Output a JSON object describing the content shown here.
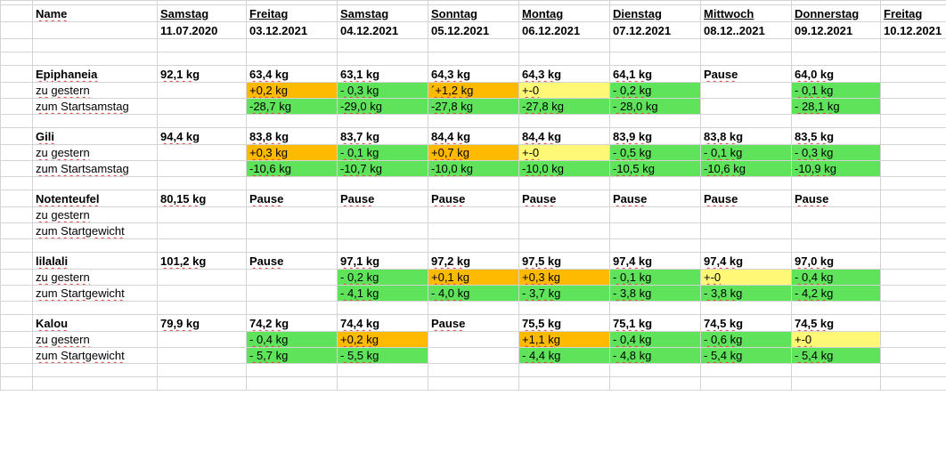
{
  "header": {
    "name_label": "Name",
    "columns": [
      {
        "day": "Samstag",
        "date": "11.07.2020"
      },
      {
        "day": "Freitag",
        "date": "03.12.2021"
      },
      {
        "day": "Samstag",
        "date": "04.12.2021"
      },
      {
        "day": "Sonntag",
        "date": "05.12.2021"
      },
      {
        "day": "Montag",
        "date": "06.12.2021"
      },
      {
        "day": "Dienstag",
        "date": "07.12.2021"
      },
      {
        "day": "Mittwoch",
        "date": "08.12..2021"
      },
      {
        "day": "Donnerstag",
        "date": "09.12.2021"
      },
      {
        "day": "Freitag",
        "date": "10.12.2021"
      }
    ]
  },
  "colors": {
    "green": "#5fe35a",
    "orange": "#fdba00",
    "yellow": "#fff877",
    "grid": "#d4d4d4"
  },
  "persons": [
    {
      "name": "Epiphaneia",
      "weights": [
        "92,1 kg",
        "63,4 kg",
        "63,1 kg",
        "64,3 kg",
        "64,3 kg",
        "64,1 kg",
        "Pause",
        "64,0 kg",
        ""
      ],
      "label1": "zu gestern",
      "row1": [
        "",
        "+0,2 kg",
        "- 0,3 kg",
        "´+1,2 kg",
        "+-0",
        "- 0,2 kg",
        "",
        "- 0,1 kg",
        ""
      ],
      "row1_colors": [
        "",
        "o",
        "g",
        "o",
        "y",
        "g",
        "",
        "g",
        ""
      ],
      "label2": "zum Startsamstag",
      "row2": [
        "",
        "-28,7 kg",
        "-29,0 kg",
        "-27,8 kg",
        "-27,8 kg",
        "- 28,0 kg",
        "",
        "- 28,1 kg",
        ""
      ],
      "row2_colors": [
        "",
        "g",
        "g",
        "g",
        "g",
        "g",
        "",
        "g",
        ""
      ]
    },
    {
      "name": "Gili",
      "weights": [
        "94,4 kg",
        "83,8 kg",
        "83,7 kg",
        "84,4 kg",
        "84,4 kg",
        "83,9 kg",
        "83,8 kg",
        "83,5 kg",
        ""
      ],
      "label1": "zu gestern",
      "row1": [
        "",
        "+0,3 kg",
        "- 0,1 kg",
        "+0,7 kg",
        "+-0",
        "- 0,5 kg",
        "- 0,1 kg",
        "- 0,3 kg",
        ""
      ],
      "row1_colors": [
        "",
        "o",
        "g",
        "o",
        "y",
        "g",
        "g",
        "g",
        ""
      ],
      "label2": "zum Startsamstag",
      "row2": [
        "",
        "-10,6 kg",
        "-10,7 kg",
        "-10,0 kg",
        "-10,0 kg",
        "-10,5 kg",
        "-10,6 kg",
        "-10,9 kg",
        ""
      ],
      "row2_colors": [
        "",
        "g",
        "g",
        "g",
        "g",
        "g",
        "g",
        "g",
        ""
      ]
    },
    {
      "name": "Notenteufel",
      "weights": [
        "80,15 kg",
        "Pause",
        "Pause",
        "Pause",
        "Pause",
        "Pause",
        "Pause",
        "Pause",
        ""
      ],
      "label1": "zu gestern",
      "row1": [
        "",
        "",
        "",
        "",
        "",
        "",
        "",
        "",
        ""
      ],
      "row1_colors": [
        "",
        "",
        "",
        "",
        "",
        "",
        "",
        "",
        ""
      ],
      "label2": "zum Startgewicht",
      "row2": [
        "",
        "",
        "",
        "",
        "",
        "",
        "",
        "",
        ""
      ],
      "row2_colors": [
        "",
        "",
        "",
        "",
        "",
        "",
        "",
        "",
        ""
      ]
    },
    {
      "name": "lilalali",
      "weights": [
        "101,2 kg",
        "Pause",
        "97,1 kg",
        "97,2 kg",
        "97,5 kg",
        "97,4 kg",
        "97,4 kg",
        "97,0 kg",
        ""
      ],
      "label1": "zu gestern",
      "row1": [
        "",
        "",
        "- 0,2 kg",
        "+0,1 kg",
        "+0,3 kg",
        "- 0,1 kg",
        "+-0",
        "- 0,4 kg",
        ""
      ],
      "row1_colors": [
        "",
        "",
        "g",
        "o",
        "o",
        "g",
        "y",
        "g",
        ""
      ],
      "label2": "zum Startgewicht",
      "row2": [
        "",
        "",
        "- 4,1 kg",
        "- 4,0 kg",
        "- 3,7 kg",
        "- 3,8 kg",
        "- 3,8 kg",
        "- 4,2 kg",
        ""
      ],
      "row2_colors": [
        "",
        "",
        "g",
        "g",
        "g",
        "g",
        "g",
        "g",
        ""
      ]
    },
    {
      "name": "Kalou",
      "weights": [
        "79,9 kg",
        "74,2 kg",
        "74,4 kg",
        "Pause",
        "75,5 kg",
        "75,1 kg",
        "74,5 kg",
        "74,5 kg",
        ""
      ],
      "label1": "zu gestern",
      "row1": [
        "",
        "- 0,4 kg",
        "+0,2 kg",
        "",
        "+1,1 kg",
        "- 0,4 kg",
        "- 0,6 kg",
        "+-0",
        ""
      ],
      "row1_colors": [
        "",
        "g",
        "o",
        "",
        "o",
        "g",
        "g",
        "y",
        ""
      ],
      "label2": "zum Startgewicht",
      "row2": [
        "",
        "- 5,7 kg",
        "- 5,5 kg",
        "",
        "- 4,4 kg",
        "- 4,8 kg",
        "- 5,4 kg",
        "- 5,4 kg",
        ""
      ],
      "row2_colors": [
        "",
        "g",
        "g",
        "",
        "g",
        "g",
        "g",
        "g",
        ""
      ]
    }
  ]
}
